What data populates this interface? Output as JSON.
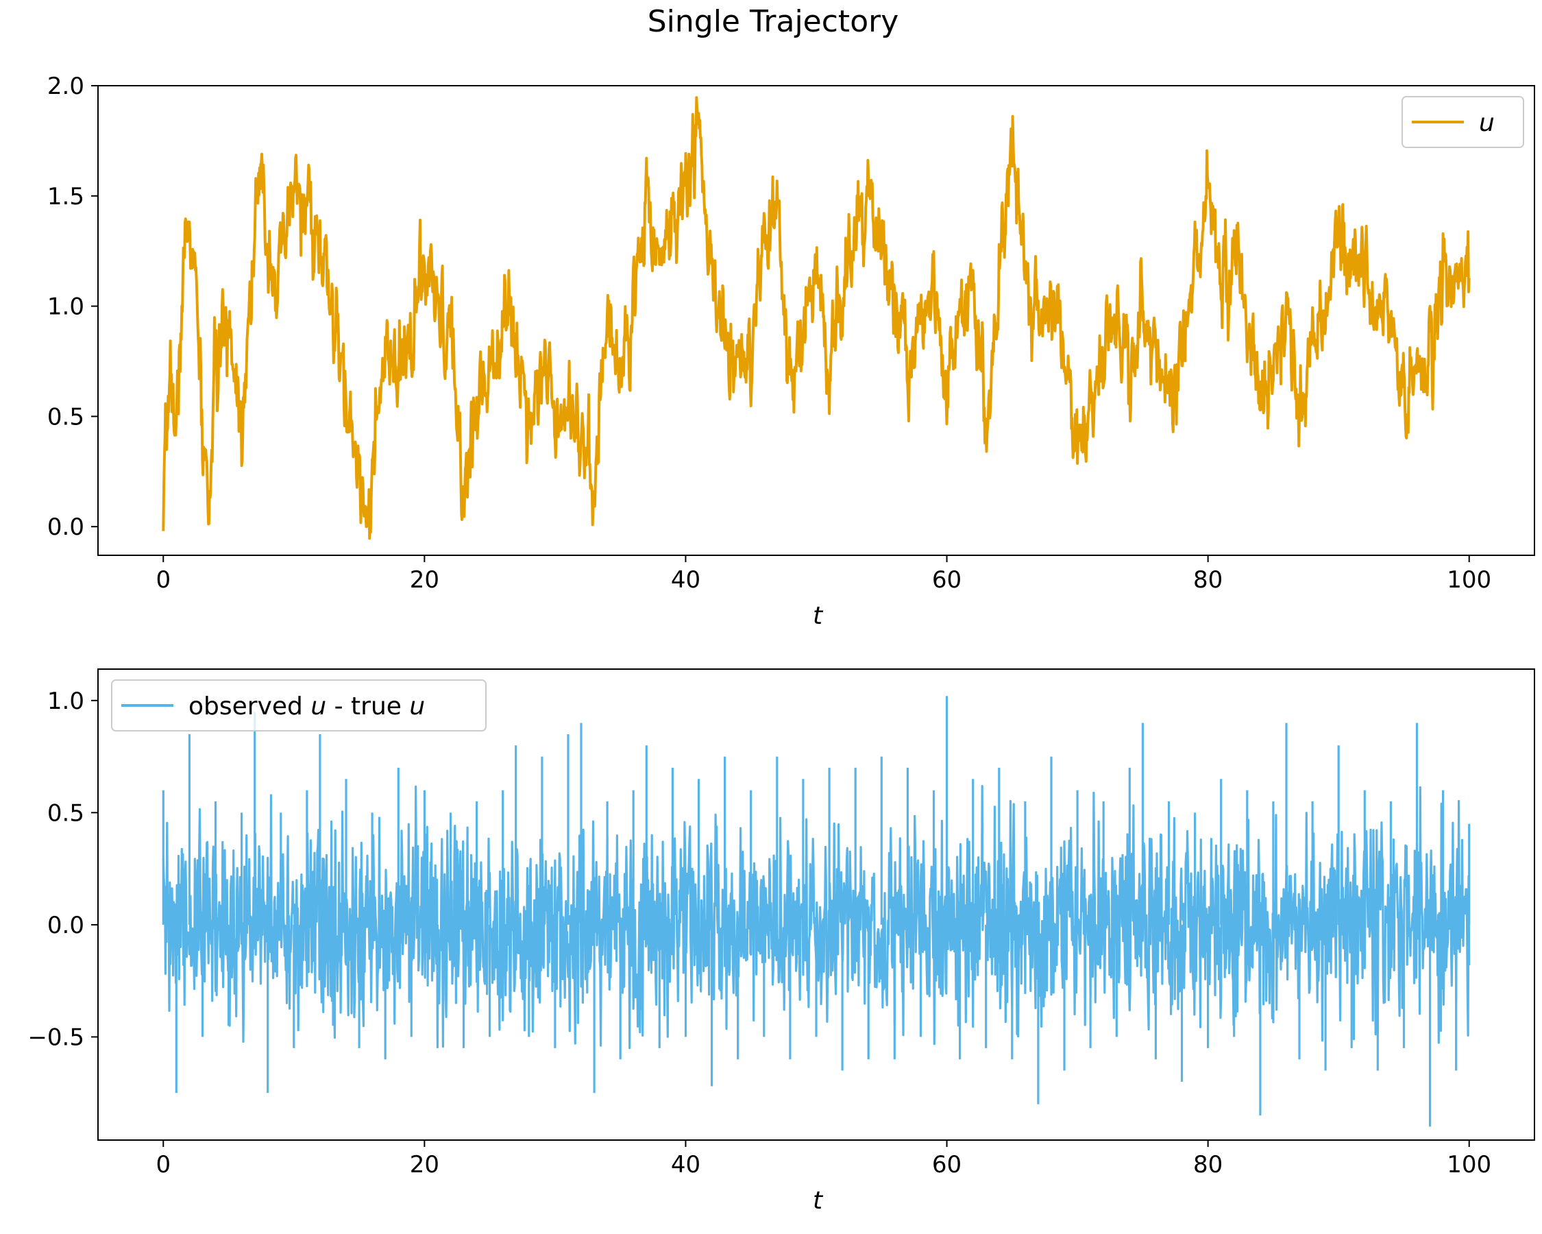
{
  "figure": {
    "title": "Single Trajectory"
  },
  "chart_data": [
    {
      "type": "line",
      "title": "",
      "xlabel": "t",
      "ylabel": "",
      "xlim": [
        -5,
        105
      ],
      "ylim": [
        -0.13,
        2.0
      ],
      "xticks": [
        0,
        20,
        40,
        60,
        80,
        100
      ],
      "xtick_labels": [
        "0",
        "20",
        "40",
        "60",
        "80",
        "100"
      ],
      "yticks": [
        0.0,
        0.5,
        1.0,
        1.5,
        2.0
      ],
      "ytick_labels": [
        "0.0",
        "0.5",
        "1.0",
        "1.5",
        "2.0"
      ],
      "grid": false,
      "legend": {
        "position": "top-right",
        "text_parts": [
          "",
          "u",
          ""
        ]
      },
      "series": [
        {
          "name": "u",
          "color": "#E69F00",
          "x": [
            0,
            0.5,
            1,
            1.5,
            2,
            2.5,
            3,
            3.5,
            4,
            5,
            6,
            7,
            7.5,
            8,
            9,
            10,
            11,
            12,
            13,
            14,
            15,
            15.8,
            16.5,
            17,
            18,
            19,
            20,
            21,
            22,
            23,
            24,
            25,
            26,
            27,
            28,
            29,
            30,
            31,
            32,
            32.8,
            33.5,
            34,
            35,
            36,
            37,
            38,
            39,
            40,
            41,
            42,
            43,
            44,
            45,
            46,
            47,
            48,
            49,
            50,
            51,
            52,
            53,
            54,
            55,
            56,
            57,
            58,
            59,
            60,
            61,
            62,
            63,
            64,
            65,
            66,
            67,
            68,
            69,
            70,
            71,
            72,
            73,
            74,
            75,
            76,
            77,
            78,
            79,
            80,
            81,
            82,
            83,
            84,
            85,
            86,
            87,
            88,
            89,
            90,
            91,
            92,
            93,
            94,
            95,
            96,
            97,
            98,
            99,
            100
          ],
          "y": [
            -0.02,
            0.75,
            0.4,
            1.15,
            1.4,
            1.05,
            0.4,
            0.1,
            0.7,
            0.95,
            0.5,
            1.35,
            1.55,
            1.3,
            1.1,
            1.55,
            1.45,
            1.25,
            0.95,
            0.55,
            0.25,
            0.1,
            0.5,
            0.75,
            0.65,
            0.9,
            1.15,
            0.95,
            0.85,
            0.15,
            0.55,
            0.75,
            1.0,
            0.85,
            0.5,
            0.75,
            0.55,
            0.6,
            0.45,
            0.1,
            0.65,
            0.9,
            0.75,
            0.95,
            1.55,
            1.2,
            1.4,
            1.55,
            1.8,
            1.1,
            0.85,
            0.75,
            0.7,
            1.25,
            1.45,
            0.55,
            0.9,
            1.15,
            0.8,
            1.05,
            1.3,
            1.5,
            1.25,
            1.05,
            0.7,
            0.95,
            1.2,
            0.55,
            0.95,
            1.15,
            0.45,
            1.2,
            1.7,
            1.2,
            0.95,
            1.05,
            0.8,
            0.3,
            0.55,
            0.75,
            0.95,
            0.7,
            1.0,
            0.8,
            0.55,
            0.85,
            1.15,
            1.6,
            1.05,
            1.25,
            0.95,
            0.55,
            0.7,
            1.0,
            0.55,
            0.8,
            0.95,
            1.35,
            1.15,
            1.25,
            0.85,
            0.95,
            0.6,
            0.7,
            0.75,
            1.15,
            1.05,
            1.25
          ]
        }
      ]
    },
    {
      "type": "line",
      "title": "",
      "xlabel": "t",
      "ylabel": "",
      "xlim": [
        -5,
        105
      ],
      "ylim": [
        -0.96,
        1.14
      ],
      "xticks": [
        0,
        20,
        40,
        60,
        80,
        100
      ],
      "xtick_labels": [
        "0",
        "20",
        "40",
        "60",
        "80",
        "100"
      ],
      "yticks": [
        -0.5,
        0.0,
        0.5,
        1.0
      ],
      "ytick_labels": [
        "−0.5",
        "0.0",
        "0.5",
        "1.0"
      ],
      "grid": false,
      "legend": {
        "position": "top-left",
        "text_parts": [
          "observed ",
          "u",
          " - true ",
          "u"
        ]
      },
      "series": [
        {
          "name": "observed u - true u",
          "color": "#56B4E9",
          "x": [
            0,
            1,
            2,
            3,
            4,
            5,
            6,
            7,
            8,
            9,
            10,
            11,
            12,
            13,
            14,
            15,
            16,
            17,
            18,
            19,
            20,
            21,
            22,
            23,
            24,
            25,
            26,
            27,
            28,
            29,
            30,
            31,
            32,
            33,
            34,
            35,
            36,
            37,
            38,
            39,
            40,
            41,
            42,
            43,
            44,
            45,
            46,
            47,
            48,
            49,
            50,
            51,
            52,
            53,
            54,
            55,
            56,
            57,
            58,
            59,
            60,
            61,
            62,
            63,
            64,
            65,
            66,
            67,
            68,
            69,
            70,
            71,
            72,
            73,
            74,
            75,
            76,
            77,
            78,
            79,
            80,
            81,
            82,
            83,
            84,
            85,
            86,
            87,
            88,
            89,
            90,
            91,
            92,
            93,
            94,
            95,
            96,
            97,
            98,
            99,
            100
          ],
          "y": [
            0.6,
            -0.75,
            0.85,
            -0.5,
            0.55,
            -0.45,
            0.5,
            0.95,
            -0.75,
            0.5,
            -0.55,
            0.6,
            0.85,
            -0.45,
            0.65,
            -0.55,
            0.5,
            -0.6,
            0.7,
            -0.5,
            0.6,
            -0.55,
            0.5,
            -0.55,
            0.55,
            -0.5,
            0.6,
            0.8,
            -0.5,
            0.75,
            -0.55,
            0.85,
            0.9,
            -0.75,
            0.55,
            -0.6,
            0.6,
            0.8,
            -0.55,
            0.7,
            -0.5,
            0.65,
            -0.72,
            0.75,
            -0.6,
            0.6,
            -0.5,
            0.75,
            -0.6,
            0.65,
            -0.5,
            0.7,
            -0.65,
            0.7,
            -0.6,
            0.75,
            -0.6,
            0.7,
            -0.5,
            0.6,
            1.02,
            -0.6,
            0.65,
            -0.55,
            0.7,
            -0.6,
            0.55,
            -0.8,
            0.75,
            -0.65,
            0.6,
            -0.55,
            0.55,
            -0.5,
            0.7,
            0.9,
            -0.6,
            0.55,
            -0.7,
            0.5,
            -0.55,
            0.65,
            -0.5,
            0.6,
            -0.85,
            0.55,
            0.9,
            -0.6,
            0.55,
            -0.65,
            0.8,
            -0.55,
            0.6,
            -0.65,
            0.55,
            -0.55,
            0.9,
            -0.9,
            0.6,
            -0.65,
            0.45
          ]
        }
      ]
    }
  ]
}
